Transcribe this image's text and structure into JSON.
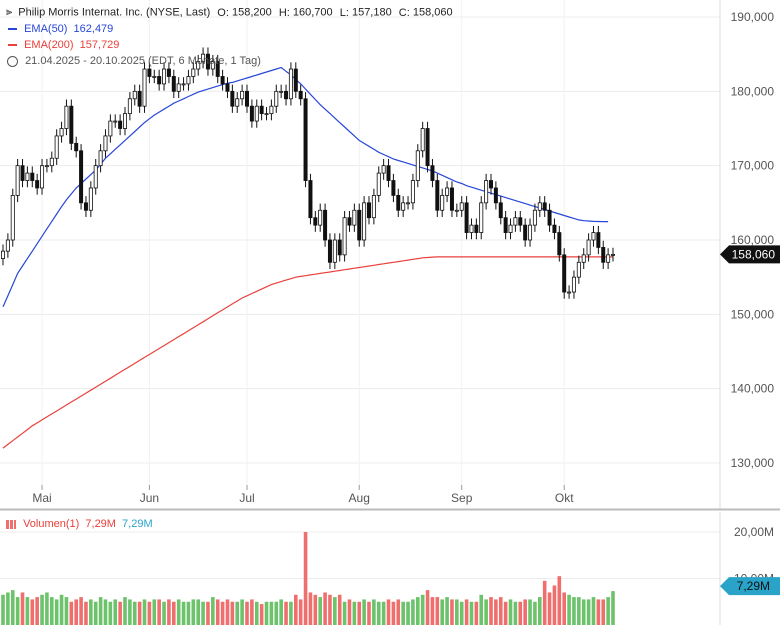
{
  "header": {
    "title": "Philip Morris Internat. Inc. (NYSE, Last)",
    "ohlc": [
      {
        "label": "O:",
        "value": "158,200"
      },
      {
        "label": "H:",
        "value": "160,700"
      },
      {
        "label": "L:",
        "value": "157,180"
      },
      {
        "label": "C:",
        "value": "158,060"
      }
    ],
    "ema50": {
      "label": "EMA(50)",
      "value": "162,479",
      "color": "#2847d8"
    },
    "ema200": {
      "label": "EMA(200)",
      "value": "157,729",
      "color": "#e8413c"
    },
    "range": "21.04.2025 - 20.10.2025 (EDT, 6 Monate, 1 Tag)"
  },
  "volume_panel": {
    "label": "Volumen(1)",
    "value_red": "7,29M",
    "value_blue": "7,29M",
    "badge": "7,29M",
    "up_color": "#6cc36c",
    "down_color": "#ef6f6f"
  },
  "chart_data": {
    "type": "candlestick",
    "price_axis": {
      "ticks": [
        130,
        140,
        150,
        160,
        170,
        180,
        190
      ],
      "tick_labels": [
        "130,000",
        "140,000",
        "150,000",
        "160,000",
        "170,000",
        "180,000",
        "190,000"
      ],
      "range": [
        126,
        193
      ]
    },
    "volume_axis": {
      "ticks": [
        10,
        20
      ],
      "tick_labels": [
        "10,00M",
        "20,00M"
      ],
      "unit": "M"
    },
    "x_ticks": [
      {
        "label": "Mai",
        "day": 8
      },
      {
        "label": "Jun",
        "day": 30
      },
      {
        "label": "Jul",
        "day": 50
      },
      {
        "label": "Aug",
        "day": 73
      },
      {
        "label": "Sep",
        "day": 94
      },
      {
        "label": "Okt",
        "day": 115
      }
    ],
    "last_price": {
      "value": 158.06,
      "label": "158,060"
    },
    "ohlc_close": [
      158.5,
      160,
      166,
      170,
      168,
      169,
      168,
      167,
      170,
      170,
      171,
      174,
      175,
      178,
      173,
      172,
      165,
      164,
      167,
      170,
      172,
      174,
      176,
      176,
      175,
      177,
      179,
      180,
      178,
      183,
      182,
      182,
      181,
      183,
      182,
      180,
      181,
      181,
      182,
      183,
      184,
      185,
      183,
      184,
      182,
      181,
      180,
      178,
      179,
      180,
      178,
      176,
      178,
      177,
      177,
      178,
      180,
      180,
      179,
      183,
      180,
      179,
      168,
      163,
      162,
      164,
      160,
      157,
      160,
      158,
      163,
      162,
      164,
      160,
      165,
      163,
      166,
      169,
      170,
      168,
      166,
      164,
      165,
      165,
      168,
      172,
      175,
      170,
      168,
      164,
      166,
      167,
      164,
      164,
      165,
      161,
      162,
      161,
      165,
      168,
      167,
      165,
      163,
      161,
      162,
      163,
      162,
      160,
      162,
      164,
      165,
      164,
      162,
      161,
      158,
      153,
      153,
      155,
      157,
      158,
      160,
      161,
      159,
      157,
      158,
      158.06
    ],
    "ema50": [
      151,
      152.5,
      154,
      155.5,
      156.5,
      157.5,
      158.5,
      159.5,
      160.5,
      161.5,
      162.5,
      163.5,
      164.5,
      165.4,
      166.2,
      167,
      167.6,
      168.2,
      168.8,
      169.4,
      170.2,
      171,
      171.6,
      172.2,
      172.8,
      173.4,
      174,
      174.6,
      175.2,
      175.8,
      176.3,
      176.8,
      177.2,
      177.6,
      178,
      178.4,
      178.7,
      179,
      179.3,
      179.6,
      179.9,
      180.1,
      180.3,
      180.5,
      180.7,
      180.9,
      181.1,
      181.2,
      181.4,
      181.6,
      181.8,
      182,
      182.2,
      182.4,
      182.6,
      182.8,
      183,
      183.2,
      182.7,
      182.2,
      181.6,
      181,
      180.3,
      179.6,
      178.9,
      178.2,
      177.6,
      177,
      176.4,
      175.8,
      175.2,
      174.6,
      174,
      173.4,
      173,
      172.6,
      172.2,
      171.8,
      171.5,
      171.2,
      170.9,
      170.7,
      170.5,
      170.3,
      170.1,
      169.9,
      169.7,
      169.5,
      169.3,
      169,
      168.7,
      168.4,
      168.1,
      167.8,
      167.6,
      167.3,
      167.1,
      166.9,
      166.7,
      166.5,
      166.3,
      166.1,
      165.9,
      165.7,
      165.5,
      165.3,
      165.1,
      164.9,
      164.7,
      164.5,
      164.3,
      164.1,
      163.9,
      163.7,
      163.5,
      163.3,
      163.1,
      162.9,
      162.7,
      162.6,
      162.55,
      162.5,
      162.49,
      162.48,
      162.479
    ],
    "ema200": [
      132,
      132.5,
      133,
      133.5,
      134,
      134.5,
      135,
      135.4,
      135.8,
      136.2,
      136.6,
      137,
      137.4,
      137.8,
      138.2,
      138.6,
      139,
      139.4,
      139.8,
      140.2,
      140.6,
      141,
      141.4,
      141.8,
      142.2,
      142.6,
      143,
      143.4,
      143.8,
      144.2,
      144.6,
      145,
      145.4,
      145.8,
      146.2,
      146.6,
      147,
      147.4,
      147.8,
      148.2,
      148.6,
      149,
      149.4,
      149.8,
      150.2,
      150.6,
      151,
      151.4,
      151.8,
      152.2,
      152.5,
      152.8,
      153.1,
      153.4,
      153.7,
      154,
      154.2,
      154.4,
      154.6,
      154.8,
      155,
      155.1,
      155.2,
      155.3,
      155.4,
      155.5,
      155.6,
      155.7,
      155.8,
      155.9,
      156,
      156.1,
      156.2,
      156.3,
      156.4,
      156.5,
      156.6,
      156.7,
      156.8,
      156.9,
      157,
      157.1,
      157.2,
      157.3,
      157.4,
      157.5,
      157.6,
      157.65,
      157.7,
      157.72,
      157.73,
      157.73,
      157.73,
      157.73,
      157.73,
      157.73,
      157.73,
      157.73,
      157.73,
      157.73,
      157.73,
      157.73,
      157.73,
      157.73,
      157.73,
      157.73,
      157.73,
      157.73,
      157.73,
      157.73,
      157.73,
      157.73,
      157.73,
      157.73,
      157.73,
      157.73,
      157.73,
      157.729,
      157.729,
      157.729,
      157.729,
      157.729,
      157.729,
      157.729,
      157.729,
      157.729
    ],
    "volume": [
      6.5,
      7,
      7.5,
      6,
      7,
      6,
      5.5,
      6,
      6.5,
      7,
      6,
      5.5,
      6.5,
      6,
      5,
      5.5,
      6,
      5,
      5.5,
      5,
      6,
      5.5,
      5,
      5.5,
      5,
      6,
      5.5,
      5,
      5,
      5.5,
      5,
      5.5,
      5.5,
      5,
      5.5,
      5,
      5.5,
      5,
      5,
      5.5,
      5.5,
      5,
      5,
      6,
      5.5,
      5,
      5.5,
      5,
      5,
      5.5,
      5,
      5.5,
      5,
      4.5,
      5,
      5,
      5,
      5.5,
      5,
      5,
      6.5,
      5.5,
      20,
      7,
      6.5,
      6,
      7,
      6.5,
      6,
      6.5,
      5,
      5.5,
      5,
      5,
      5.5,
      5,
      5.5,
      5,
      5,
      5.5,
      5,
      5.5,
      5,
      5,
      5.5,
      6,
      6.5,
      7.5,
      6,
      6,
      5.5,
      6,
      5.5,
      5.5,
      5,
      5.5,
      5,
      5,
      6.5,
      5.5,
      6,
      5.5,
      6,
      5,
      5.5,
      5,
      5,
      5.5,
      5.5,
      5,
      6,
      9.5,
      7,
      8.5,
      10.5,
      7,
      6.5,
      6,
      6,
      5.5,
      5.5,
      6,
      5.5,
      5.5,
      6,
      7.29
    ]
  }
}
